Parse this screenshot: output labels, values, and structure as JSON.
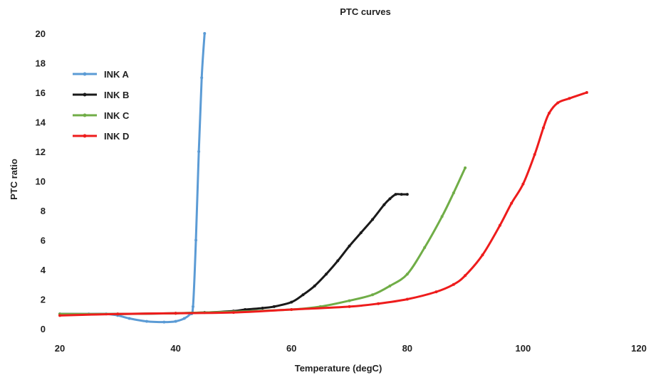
{
  "chart_data": {
    "type": "line",
    "title": "PTC curves",
    "xlabel": "Temperature (degC)",
    "ylabel": "PTC ratio",
    "xlim": [
      20,
      120
    ],
    "ylim": [
      0,
      20
    ],
    "xticks": [
      20,
      40,
      60,
      80,
      100,
      120
    ],
    "yticks": [
      0,
      2,
      4,
      6,
      8,
      10,
      12,
      14,
      16,
      18,
      20
    ],
    "grid": false,
    "legend_position": "top-left",
    "series": [
      {
        "name": "INK A",
        "color": "#5b9bd5",
        "points": [
          [
            20,
            1.0
          ],
          [
            25,
            1.0
          ],
          [
            28,
            1.0
          ],
          [
            30,
            0.9
          ],
          [
            32,
            0.7
          ],
          [
            35,
            0.5
          ],
          [
            38,
            0.45
          ],
          [
            40,
            0.5
          ],
          [
            41.5,
            0.7
          ],
          [
            42.5,
            1.0
          ],
          [
            43,
            1.5
          ],
          [
            43.5,
            6
          ],
          [
            44,
            12
          ],
          [
            44.5,
            17
          ],
          [
            45,
            20
          ]
        ]
      },
      {
        "name": "INK B",
        "color": "#1a1a1a",
        "points": [
          [
            20,
            1.0
          ],
          [
            30,
            1.0
          ],
          [
            40,
            1.05
          ],
          [
            45,
            1.1
          ],
          [
            50,
            1.2
          ],
          [
            52,
            1.3
          ],
          [
            55,
            1.4
          ],
          [
            57,
            1.5
          ],
          [
            60,
            1.8
          ],
          [
            62,
            2.3
          ],
          [
            64,
            2.9
          ],
          [
            66,
            3.7
          ],
          [
            68,
            4.6
          ],
          [
            70,
            5.6
          ],
          [
            72,
            6.5
          ],
          [
            74,
            7.4
          ],
          [
            76,
            8.4
          ],
          [
            77,
            8.8
          ],
          [
            78,
            9.1
          ],
          [
            79,
            9.1
          ],
          [
            80,
            9.1
          ]
        ]
      },
      {
        "name": "INK C",
        "color": "#70ad47",
        "points": [
          [
            20,
            1.0
          ],
          [
            30,
            1.0
          ],
          [
            40,
            1.05
          ],
          [
            50,
            1.15
          ],
          [
            60,
            1.3
          ],
          [
            65,
            1.5
          ],
          [
            70,
            1.9
          ],
          [
            74,
            2.3
          ],
          [
            77,
            2.9
          ],
          [
            80,
            3.7
          ],
          [
            83,
            5.5
          ],
          [
            86,
            7.6
          ],
          [
            88,
            9.2
          ],
          [
            90,
            10.9
          ]
        ]
      },
      {
        "name": "INK D",
        "color": "#ee1c1c",
        "points": [
          [
            20,
            0.9
          ],
          [
            30,
            1.0
          ],
          [
            40,
            1.05
          ],
          [
            50,
            1.1
          ],
          [
            60,
            1.3
          ],
          [
            70,
            1.5
          ],
          [
            75,
            1.7
          ],
          [
            80,
            2.0
          ],
          [
            85,
            2.5
          ],
          [
            88,
            3.0
          ],
          [
            90,
            3.6
          ],
          [
            93,
            5.0
          ],
          [
            96,
            7.0
          ],
          [
            98,
            8.5
          ],
          [
            100,
            9.8
          ],
          [
            102,
            11.8
          ],
          [
            103.5,
            13.6
          ],
          [
            104.5,
            14.6
          ],
          [
            106,
            15.3
          ],
          [
            108,
            15.6
          ],
          [
            111,
            16.0
          ]
        ]
      }
    ]
  }
}
